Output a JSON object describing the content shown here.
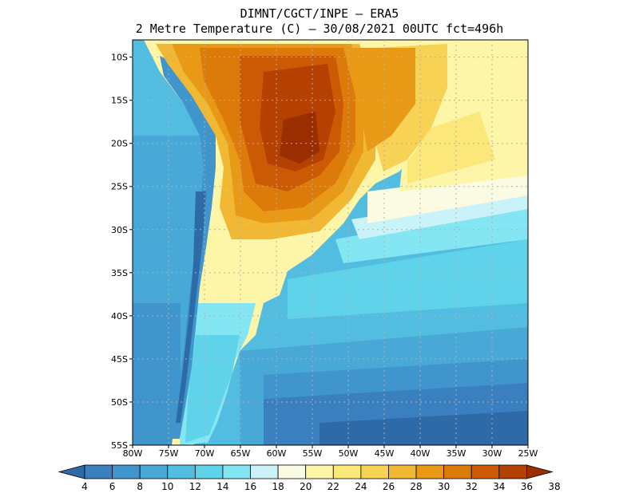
{
  "title": {
    "line1": "DIMNT/CGCT/INPE –  ERA5",
    "line2": "2 Metre Temperature (C) –  30/08/2021 00UTC fct=496h"
  },
  "map": {
    "lat_labels": [
      "10S",
      "15S",
      "20S",
      "25S",
      "30S",
      "35S",
      "40S",
      "45S",
      "50S",
      "55S"
    ],
    "lon_labels": [
      "80W",
      "75W",
      "70W",
      "65W",
      "60W",
      "55W",
      "50W",
      "45W",
      "40W",
      "35W",
      "30W",
      "25W"
    ]
  },
  "colorbar": {
    "labels": [
      "4",
      "6",
      "8",
      "10",
      "12",
      "14",
      "16",
      "18",
      "20",
      "22",
      "24",
      "26",
      "28",
      "30",
      "32",
      "34",
      "36",
      "38"
    ],
    "colors": [
      "#2e6aa8",
      "#3a7fc0",
      "#3f95cc",
      "#48a8d6",
      "#52bde0",
      "#5fd3ea",
      "#84e6f2",
      "#c9f3f8",
      "#fbfbe4",
      "#fdf5a8",
      "#fbe77a",
      "#f7d254",
      "#f1b833",
      "#e89a17",
      "#dc7a0a",
      "#cc5a05",
      "#b44002",
      "#9a2e00"
    ]
  }
}
